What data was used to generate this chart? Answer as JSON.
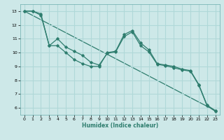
{
  "xlabel": "Humidex (Indice chaleur)",
  "ylabel": "",
  "bg_color": "#cde8e8",
  "grid_color": "#b0d8d8",
  "line_color": "#2e7d6e",
  "xlim": [
    -0.5,
    23.5
  ],
  "ylim": [
    5.5,
    13.5
  ],
  "xticks": [
    0,
    1,
    2,
    3,
    4,
    5,
    6,
    7,
    8,
    9,
    10,
    11,
    12,
    13,
    14,
    15,
    16,
    17,
    18,
    19,
    20,
    21,
    22,
    23
  ],
  "yticks": [
    6,
    7,
    8,
    9,
    10,
    11,
    12,
    13
  ],
  "line1_x": [
    0,
    1,
    2,
    3,
    4,
    5,
    6,
    7,
    8,
    9,
    10,
    11,
    12,
    13,
    14,
    15,
    16,
    17,
    18,
    19,
    20,
    21,
    22,
    23
  ],
  "line1_y": [
    13,
    13,
    12.8,
    10.5,
    10.5,
    10.0,
    9.5,
    9.2,
    9.0,
    9.0,
    10.0,
    10.1,
    11.3,
    11.6,
    10.7,
    10.2,
    9.2,
    9.1,
    9.0,
    8.8,
    8.7,
    7.7,
    6.2,
    5.8
  ],
  "line2_x": [
    0,
    1,
    2,
    3,
    4,
    5,
    6,
    7,
    8,
    9,
    10,
    11,
    12,
    13,
    14,
    15,
    16,
    17,
    18,
    19,
    20,
    21,
    22,
    23
  ],
  "line2_y": [
    13,
    13,
    12.7,
    10.5,
    11.0,
    10.4,
    10.1,
    9.8,
    9.3,
    9.1,
    9.95,
    10.05,
    11.15,
    11.5,
    10.5,
    10.05,
    9.15,
    9.05,
    8.9,
    8.75,
    8.65,
    7.65,
    6.15,
    5.75
  ],
  "line3_x": [
    0,
    23
  ],
  "line3_y": [
    13,
    5.8
  ],
  "xlabel_fontsize": 5.5,
  "tick_fontsize": 4.5
}
